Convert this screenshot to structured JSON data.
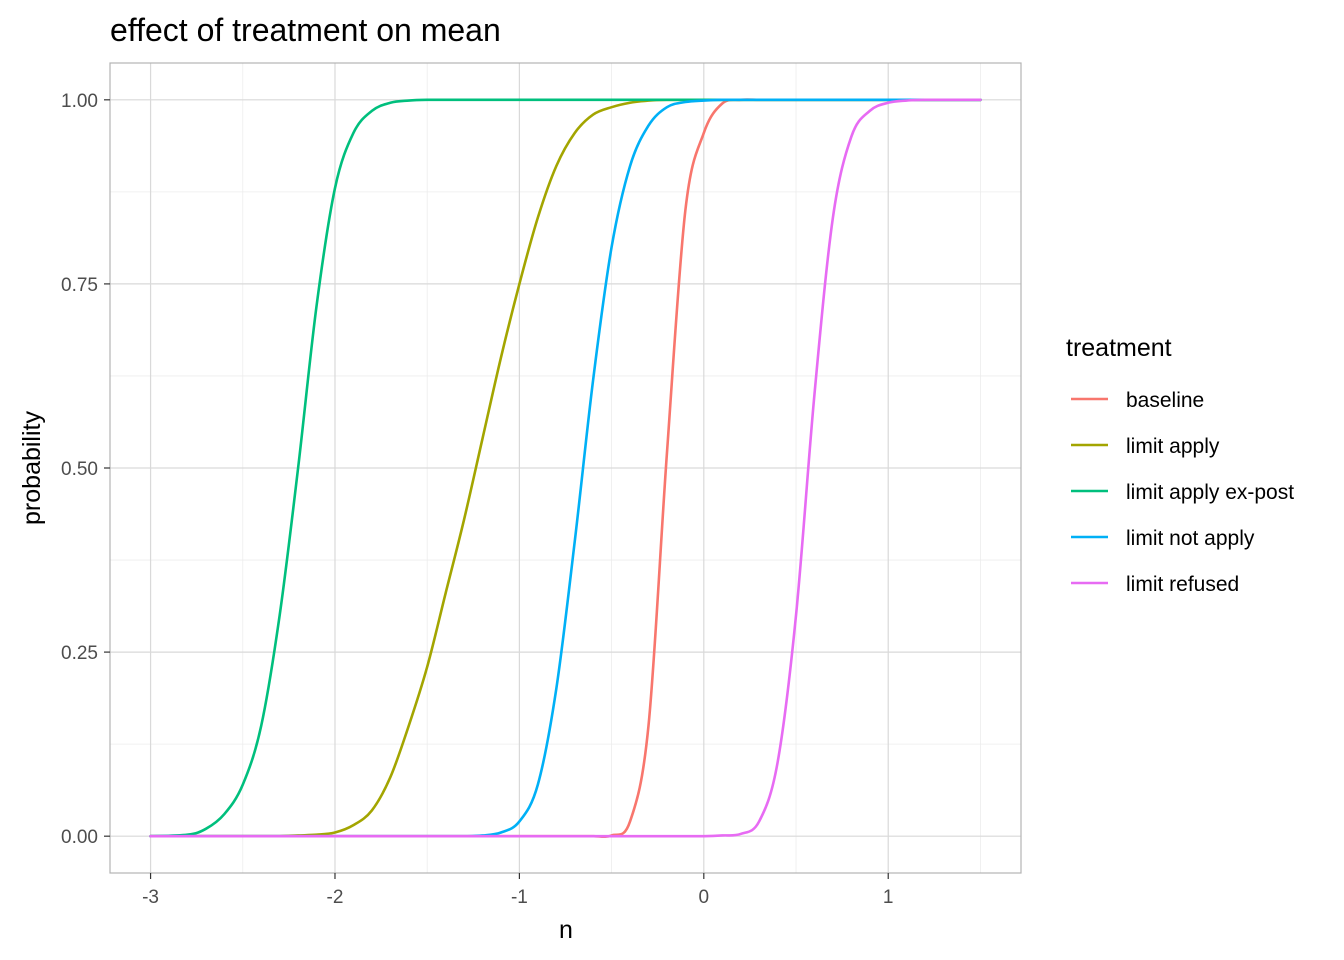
{
  "chart_data": {
    "type": "line",
    "title": "effect of treatment on mean",
    "xlabel": "n",
    "ylabel": "probability",
    "xlim": [
      -3.22,
      1.72
    ],
    "ylim": [
      -0.05,
      1.05
    ],
    "x_ticks": [
      -3,
      -2,
      -1,
      0,
      1
    ],
    "x_tick_labels": [
      "-3",
      "-2",
      "-1",
      "0",
      "1"
    ],
    "y_ticks": [
      0,
      0.25,
      0.5,
      0.75,
      1
    ],
    "y_tick_labels": [
      "0.00",
      "0.25",
      "0.50",
      "0.75",
      "1.00"
    ],
    "grid": true,
    "legend": {
      "title": "treatment",
      "position": "right"
    },
    "x": [
      -3.0,
      -2.8,
      -2.7,
      -2.6,
      -2.5,
      -2.4,
      -2.3,
      -2.2,
      -2.1,
      -2.0,
      -1.9,
      -1.8,
      -1.7,
      -1.6,
      -1.5,
      -1.4,
      -1.3,
      -1.2,
      -1.1,
      -1.0,
      -0.9,
      -0.8,
      -0.7,
      -0.6,
      -0.5,
      -0.4,
      -0.3,
      -0.2,
      -0.1,
      0.0,
      0.1,
      0.2,
      0.3,
      0.4,
      0.5,
      0.6,
      0.7,
      0.8,
      0.9,
      1.0,
      1.1,
      1.2,
      1.5
    ],
    "series": [
      {
        "name": "baseline",
        "color": "#F8766D",
        "values": [
          0,
          0,
          0,
          0,
          0,
          0,
          0,
          0,
          0,
          0,
          0,
          0,
          0,
          0,
          0,
          0,
          0,
          0,
          0,
          0,
          0,
          0,
          0,
          0,
          0.001,
          0.02,
          0.15,
          0.52,
          0.85,
          0.955,
          0.995,
          1,
          1,
          1,
          1,
          1,
          1,
          1,
          1,
          1,
          1,
          1,
          1
        ]
      },
      {
        "name": "limit apply",
        "color": "#A3A500",
        "values": [
          0,
          0,
          0,
          0,
          0,
          0,
          0,
          0.001,
          0.002,
          0.005,
          0.015,
          0.035,
          0.08,
          0.15,
          0.23,
          0.33,
          0.43,
          0.54,
          0.65,
          0.75,
          0.84,
          0.91,
          0.955,
          0.98,
          0.99,
          0.996,
          0.999,
          1,
          1,
          1,
          1,
          1,
          1,
          1,
          1,
          1,
          1,
          1,
          1,
          1,
          1,
          1,
          1
        ]
      },
      {
        "name": "limit apply ex-post",
        "color": "#00BF7D",
        "values": [
          0,
          0.002,
          0.01,
          0.03,
          0.07,
          0.15,
          0.3,
          0.5,
          0.72,
          0.88,
          0.955,
          0.985,
          0.996,
          0.999,
          1,
          1,
          1,
          1,
          1,
          1,
          1,
          1,
          1,
          1,
          1,
          1,
          1,
          1,
          1,
          1,
          1,
          1,
          1,
          1,
          1,
          1,
          1,
          1,
          1,
          1,
          1,
          1,
          1
        ]
      },
      {
        "name": "limit not apply",
        "color": "#00B0F6",
        "values": [
          0,
          0,
          0,
          0,
          0,
          0,
          0,
          0,
          0,
          0,
          0,
          0,
          0,
          0,
          0,
          0,
          0,
          0.001,
          0.005,
          0.02,
          0.07,
          0.2,
          0.4,
          0.62,
          0.8,
          0.91,
          0.965,
          0.99,
          0.997,
          0.999,
          1,
          1,
          1,
          1,
          1,
          1,
          1,
          1,
          1,
          1,
          1,
          1,
          1
        ]
      },
      {
        "name": "limit refused",
        "color": "#E76BF3",
        "values": [
          0,
          0,
          0,
          0,
          0,
          0,
          0,
          0,
          0,
          0,
          0,
          0,
          0,
          0,
          0,
          0,
          0,
          0,
          0,
          0,
          0,
          0,
          0,
          0,
          0,
          0,
          0,
          0,
          0,
          0,
          0.001,
          0.003,
          0.02,
          0.1,
          0.3,
          0.6,
          0.84,
          0.95,
          0.985,
          0.996,
          0.999,
          1,
          1
        ]
      }
    ]
  }
}
